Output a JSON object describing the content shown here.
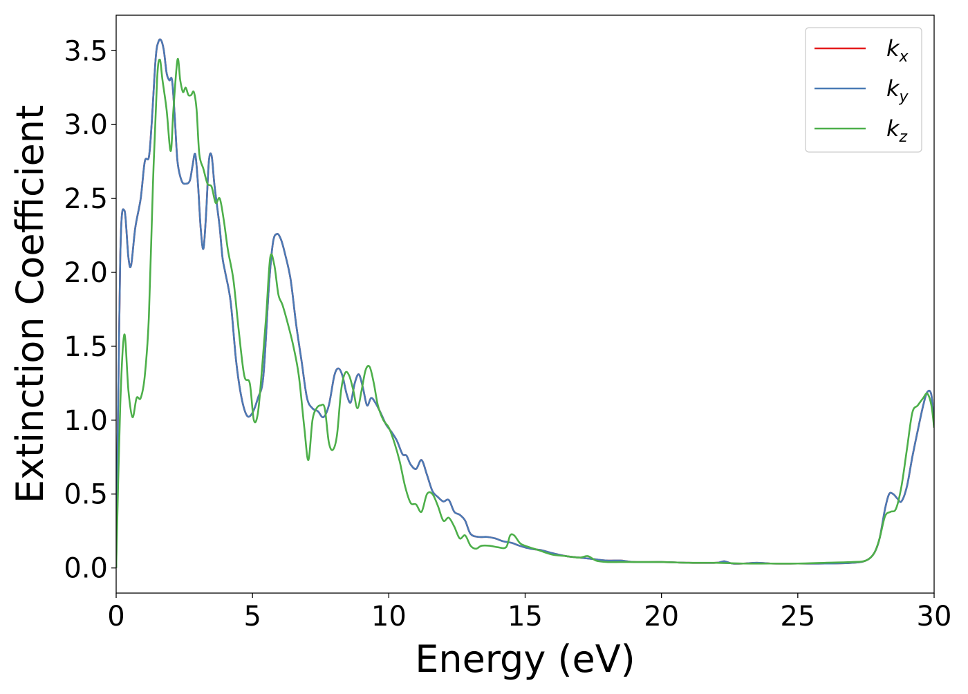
{
  "chart_data": {
    "type": "line",
    "title": "",
    "xlabel": "Energy (eV)",
    "ylabel": "Extinction Coefficient",
    "xlim": [
      0,
      30
    ],
    "ylim": [
      -0.17,
      3.74
    ],
    "xticks": [
      0,
      5,
      10,
      15,
      20,
      25,
      30
    ],
    "yticks": [
      0.0,
      0.5,
      1.0,
      1.5,
      2.0,
      2.5,
      3.0,
      3.5
    ],
    "xtick_labels": [
      "0",
      "5",
      "10",
      "15",
      "20",
      "25",
      "30"
    ],
    "ytick_labels": [
      "0.0",
      "0.5",
      "1.0",
      "1.5",
      "2.0",
      "2.5",
      "3.0",
      "3.5"
    ],
    "grid": false,
    "legend_position": "top-right",
    "series": [
      {
        "name": "kx",
        "legend_base": "k",
        "legend_sub": "x",
        "color": "#e41a1c",
        "x": [
          0,
          0.15,
          0.3,
          0.45,
          0.55,
          0.7,
          0.9,
          1.05,
          1.2,
          1.3,
          1.45,
          1.55,
          1.65,
          1.75,
          1.85,
          1.95,
          2.05,
          2.15,
          2.25,
          2.4,
          2.55,
          2.7,
          2.8,
          2.9,
          3.0,
          3.1,
          3.2,
          3.3,
          3.4,
          3.5,
          3.6,
          3.7,
          3.8,
          3.9,
          4.0,
          4.2,
          4.4,
          4.6,
          4.8,
          5.0,
          5.2,
          5.4,
          5.6,
          5.75,
          5.9,
          6.05,
          6.2,
          6.4,
          6.6,
          6.8,
          7.0,
          7.2,
          7.4,
          7.6,
          7.8,
          8.0,
          8.15,
          8.3,
          8.45,
          8.6,
          8.75,
          8.9,
          9.05,
          9.2,
          9.35,
          9.5,
          9.7,
          9.9,
          10.1,
          10.3,
          10.5,
          10.65,
          10.8,
          11.0,
          11.2,
          11.4,
          11.6,
          11.8,
          12.0,
          12.2,
          12.4,
          12.6,
          12.8,
          13.0,
          13.3,
          13.6,
          13.9,
          14.2,
          14.5,
          14.8,
          15.2,
          15.6,
          16.0,
          16.5,
          17.0,
          17.5,
          18.0,
          18.5,
          19.0,
          20.0,
          21.0,
          22.0,
          22.3,
          22.6,
          23.0,
          23.5,
          24.0,
          25.0,
          26.0,
          27.0,
          27.5,
          27.8,
          28.0,
          28.2,
          28.35,
          28.5,
          28.65,
          28.8,
          29.0,
          29.2,
          29.4,
          29.6,
          29.75,
          29.9,
          30.0
        ],
        "values": [
          0.0,
          2.1,
          2.42,
          2.1,
          2.05,
          2.3,
          2.5,
          2.75,
          2.78,
          3.0,
          3.45,
          3.56,
          3.57,
          3.5,
          3.35,
          3.3,
          3.3,
          3.05,
          2.75,
          2.62,
          2.6,
          2.62,
          2.72,
          2.8,
          2.6,
          2.3,
          2.16,
          2.4,
          2.75,
          2.79,
          2.6,
          2.45,
          2.3,
          2.1,
          2.0,
          1.8,
          1.4,
          1.15,
          1.03,
          1.05,
          1.15,
          1.3,
          1.9,
          2.2,
          2.26,
          2.22,
          2.12,
          1.95,
          1.65,
          1.4,
          1.15,
          1.08,
          1.06,
          1.02,
          1.1,
          1.3,
          1.35,
          1.3,
          1.18,
          1.12,
          1.25,
          1.31,
          1.22,
          1.1,
          1.15,
          1.12,
          1.05,
          0.97,
          0.92,
          0.86,
          0.77,
          0.76,
          0.7,
          0.67,
          0.73,
          0.63,
          0.52,
          0.48,
          0.45,
          0.46,
          0.38,
          0.36,
          0.32,
          0.23,
          0.21,
          0.21,
          0.2,
          0.18,
          0.17,
          0.15,
          0.13,
          0.12,
          0.1,
          0.08,
          0.07,
          0.06,
          0.05,
          0.05,
          0.04,
          0.04,
          0.035,
          0.035,
          0.045,
          0.03,
          0.03,
          0.035,
          0.03,
          0.03,
          0.03,
          0.035,
          0.05,
          0.1,
          0.2,
          0.4,
          0.5,
          0.5,
          0.47,
          0.45,
          0.55,
          0.75,
          0.93,
          1.1,
          1.19,
          1.17,
          0.95
        ]
      },
      {
        "name": "ky",
        "legend_base": "k",
        "legend_sub": "y",
        "color": "#4a7ab5",
        "x": [
          0,
          0.15,
          0.3,
          0.45,
          0.55,
          0.7,
          0.9,
          1.05,
          1.2,
          1.3,
          1.45,
          1.55,
          1.65,
          1.75,
          1.85,
          1.95,
          2.05,
          2.15,
          2.25,
          2.4,
          2.55,
          2.7,
          2.8,
          2.9,
          3.0,
          3.1,
          3.2,
          3.3,
          3.4,
          3.5,
          3.6,
          3.7,
          3.8,
          3.9,
          4.0,
          4.2,
          4.4,
          4.6,
          4.8,
          5.0,
          5.2,
          5.4,
          5.6,
          5.75,
          5.9,
          6.05,
          6.2,
          6.4,
          6.6,
          6.8,
          7.0,
          7.2,
          7.4,
          7.6,
          7.8,
          8.0,
          8.15,
          8.3,
          8.45,
          8.6,
          8.75,
          8.9,
          9.05,
          9.2,
          9.35,
          9.5,
          9.7,
          9.9,
          10.1,
          10.3,
          10.5,
          10.65,
          10.8,
          11.0,
          11.2,
          11.4,
          11.6,
          11.8,
          12.0,
          12.2,
          12.4,
          12.6,
          12.8,
          13.0,
          13.3,
          13.6,
          13.9,
          14.2,
          14.5,
          14.8,
          15.2,
          15.6,
          16.0,
          16.5,
          17.0,
          17.5,
          18.0,
          18.5,
          19.0,
          20.0,
          21.0,
          22.0,
          22.3,
          22.6,
          23.0,
          23.5,
          24.0,
          25.0,
          26.0,
          27.0,
          27.5,
          27.8,
          28.0,
          28.2,
          28.35,
          28.5,
          28.65,
          28.8,
          29.0,
          29.2,
          29.4,
          29.6,
          29.75,
          29.9,
          30.0
        ],
        "values": [
          0.0,
          2.1,
          2.42,
          2.1,
          2.05,
          2.3,
          2.5,
          2.75,
          2.78,
          3.0,
          3.45,
          3.56,
          3.57,
          3.5,
          3.35,
          3.3,
          3.3,
          3.05,
          2.75,
          2.62,
          2.6,
          2.62,
          2.72,
          2.8,
          2.6,
          2.3,
          2.16,
          2.4,
          2.75,
          2.79,
          2.6,
          2.45,
          2.3,
          2.1,
          2.0,
          1.8,
          1.4,
          1.15,
          1.03,
          1.05,
          1.15,
          1.3,
          1.9,
          2.2,
          2.26,
          2.22,
          2.12,
          1.95,
          1.65,
          1.4,
          1.15,
          1.08,
          1.06,
          1.02,
          1.1,
          1.3,
          1.35,
          1.3,
          1.18,
          1.12,
          1.25,
          1.31,
          1.22,
          1.1,
          1.15,
          1.12,
          1.05,
          0.97,
          0.92,
          0.86,
          0.77,
          0.76,
          0.7,
          0.67,
          0.73,
          0.63,
          0.52,
          0.48,
          0.45,
          0.46,
          0.38,
          0.36,
          0.32,
          0.23,
          0.21,
          0.21,
          0.2,
          0.18,
          0.17,
          0.15,
          0.13,
          0.12,
          0.1,
          0.08,
          0.07,
          0.06,
          0.05,
          0.05,
          0.04,
          0.04,
          0.035,
          0.035,
          0.045,
          0.03,
          0.03,
          0.035,
          0.03,
          0.03,
          0.03,
          0.035,
          0.05,
          0.1,
          0.2,
          0.4,
          0.5,
          0.5,
          0.47,
          0.45,
          0.55,
          0.75,
          0.93,
          1.1,
          1.19,
          1.17,
          0.95
        ]
      },
      {
        "name": "kz",
        "legend_base": "k",
        "legend_sub": "z",
        "color": "#4daf4a",
        "x": [
          0,
          0.15,
          0.3,
          0.45,
          0.6,
          0.75,
          0.9,
          1.05,
          1.2,
          1.35,
          1.5,
          1.6,
          1.7,
          1.85,
          2.0,
          2.1,
          2.25,
          2.35,
          2.45,
          2.55,
          2.65,
          2.75,
          2.85,
          2.95,
          3.05,
          3.2,
          3.35,
          3.5,
          3.65,
          3.8,
          3.95,
          4.1,
          4.3,
          4.5,
          4.7,
          4.9,
          5.05,
          5.2,
          5.35,
          5.5,
          5.65,
          5.8,
          5.95,
          6.1,
          6.3,
          6.5,
          6.7,
          6.9,
          7.05,
          7.2,
          7.35,
          7.5,
          7.65,
          7.8,
          7.95,
          8.1,
          8.25,
          8.4,
          8.55,
          8.7,
          8.85,
          9.0,
          9.15,
          9.3,
          9.45,
          9.6,
          9.8,
          10.0,
          10.2,
          10.4,
          10.6,
          10.8,
          11.0,
          11.2,
          11.4,
          11.6,
          11.8,
          12.0,
          12.2,
          12.4,
          12.6,
          12.8,
          13.0,
          13.2,
          13.4,
          13.7,
          14.0,
          14.3,
          14.45,
          14.6,
          14.8,
          15.0,
          15.5,
          16.0,
          16.5,
          17.0,
          17.3,
          17.6,
          18.0,
          18.5,
          19.0,
          20.0,
          21.0,
          22.0,
          23.0,
          24.0,
          25.0,
          26.0,
          27.0,
          27.5,
          27.8,
          28.0,
          28.2,
          28.4,
          28.6,
          28.8,
          29.0,
          29.2,
          29.4,
          29.6,
          29.75,
          29.9,
          30.0
        ],
        "values": [
          0.0,
          1.1,
          1.58,
          1.2,
          1.02,
          1.15,
          1.15,
          1.3,
          1.7,
          2.6,
          3.3,
          3.44,
          3.3,
          3.1,
          2.82,
          3.1,
          3.44,
          3.3,
          3.22,
          3.25,
          3.2,
          3.2,
          3.22,
          3.1,
          2.8,
          2.7,
          2.6,
          2.58,
          2.47,
          2.5,
          2.35,
          2.15,
          1.95,
          1.6,
          1.3,
          1.25,
          1.0,
          1.05,
          1.35,
          1.7,
          2.1,
          2.05,
          1.85,
          1.78,
          1.65,
          1.5,
          1.3,
          0.95,
          0.73,
          1.0,
          1.08,
          1.1,
          1.08,
          0.85,
          0.8,
          0.9,
          1.2,
          1.32,
          1.3,
          1.2,
          1.08,
          1.2,
          1.34,
          1.36,
          1.25,
          1.1,
          1.0,
          0.95,
          0.85,
          0.72,
          0.55,
          0.44,
          0.43,
          0.38,
          0.5,
          0.5,
          0.42,
          0.32,
          0.34,
          0.28,
          0.2,
          0.22,
          0.15,
          0.13,
          0.15,
          0.15,
          0.14,
          0.14,
          0.22,
          0.22,
          0.17,
          0.15,
          0.12,
          0.09,
          0.08,
          0.07,
          0.08,
          0.05,
          0.04,
          0.04,
          0.04,
          0.04,
          0.035,
          0.035,
          0.03,
          0.03,
          0.03,
          0.035,
          0.04,
          0.05,
          0.1,
          0.2,
          0.35,
          0.38,
          0.4,
          0.55,
          0.8,
          1.05,
          1.1,
          1.15,
          1.18,
          1.1,
          0.95
        ]
      }
    ]
  }
}
